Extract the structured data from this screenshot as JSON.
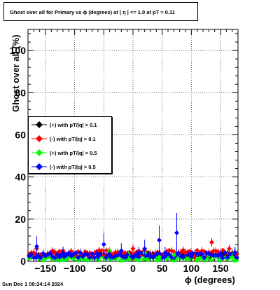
{
  "title": "Ghost over all for Primary vs ϕ (degrees) at |  η  | <= 1.0 at pT > 0.11",
  "footer": "Sun Dec  1 09:34:14 2024",
  "chart_data": {
    "type": "scatter",
    "xlabel": "ϕ (degrees)",
    "ylabel": "Ghost over all (%)",
    "xlim": [
      -180,
      180
    ],
    "ylim": [
      0,
      110
    ],
    "grid": true,
    "legend_position": "left-middle",
    "x_ticks": [
      -150,
      -100,
      -50,
      0,
      50,
      100,
      150
    ],
    "x_tick_labels": [
      "−150",
      "−100",
      "−50",
      "0",
      "50",
      "100",
      "150"
    ],
    "y_ticks": [
      0,
      20,
      40,
      60,
      80,
      100
    ],
    "y_tick_labels": [
      "0",
      "20",
      "40",
      "60",
      "80",
      "100"
    ],
    "series": [
      {
        "name": "(+) with pT/|q| > 0.1",
        "color": "#000000",
        "baseline": 3.0
      },
      {
        "name": "(-) with pT/|q| > 0.1",
        "color": "#ff0000",
        "baseline": 4.0
      },
      {
        "name": "(+) with pT/|q| > 0.5",
        "color": "#00ff00",
        "baseline": 1.5
      },
      {
        "name": "(-) with pT/|q| > 0.5",
        "color": "#0000ff",
        "baseline": 2.8
      }
    ],
    "notable_points": {
      "red": [
        [
          -165,
          6
        ],
        [
          -120,
          5
        ],
        [
          -50,
          3
        ],
        [
          0,
          6
        ],
        [
          90,
          4
        ],
        [
          105,
          2
        ],
        [
          135,
          9
        ],
        [
          165,
          6
        ]
      ],
      "green": [
        [
          -40,
          5
        ],
        [
          -8,
          3
        ],
        [
          20,
          4
        ],
        [
          45,
          2
        ],
        [
          70,
          3
        ],
        [
          110,
          1
        ],
        [
          170,
          2
        ]
      ],
      "blue": [
        [
          -165,
          7
        ],
        [
          -120,
          4
        ],
        [
          -60,
          2
        ],
        [
          -50,
          8
        ],
        [
          -40,
          3
        ],
        [
          -20,
          5
        ],
        [
          -10,
          3
        ],
        [
          10,
          4
        ],
        [
          20,
          6
        ],
        [
          35,
          2
        ],
        [
          45,
          10
        ],
        [
          55,
          4
        ],
        [
          75,
          13.5
        ],
        [
          100,
          2
        ],
        [
          150,
          3
        ],
        [
          175,
          4
        ]
      ]
    }
  }
}
